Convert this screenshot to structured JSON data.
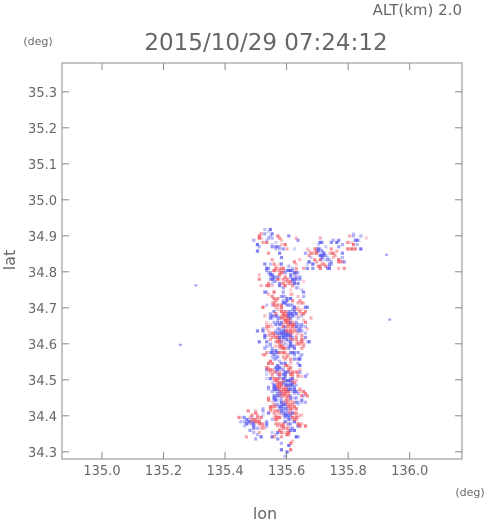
{
  "header": {
    "altitude_label": "ALT(km) 2.0",
    "timestamp": "2015/10/29 07:24:12"
  },
  "chart_data": {
    "type": "heatmap",
    "title": "2015/10/29 07:24:12",
    "xlabel": "lon",
    "ylabel": "lat",
    "xunit": "(deg)",
    "yunit": "(deg)",
    "xlim": [
      134.87,
      136.17
    ],
    "ylim": [
      34.28,
      35.38
    ],
    "xticks": [
      135.0,
      135.2,
      135.4,
      135.6,
      135.8,
      136.0
    ],
    "xtick_labels": [
      "135.0",
      "135.2",
      "135.4",
      "135.6",
      "135.8",
      "136.0"
    ],
    "yticks": [
      34.3,
      34.4,
      34.5,
      34.6,
      34.7,
      34.8,
      34.9,
      35.0,
      35.1,
      35.2,
      35.3
    ],
    "ytick_labels": [
      "34.3",
      "34.4",
      "34.5",
      "34.6",
      "34.7",
      "34.8",
      "34.9",
      "35.0",
      "35.1",
      "35.2",
      "35.3"
    ],
    "grid": false,
    "colors": {
      "positive": "#f05a64",
      "negative": "#5a5af0",
      "frame": "#888888"
    },
    "regions": [
      {
        "lon": 135.59,
        "lat": 34.46,
        "sx": 0.045,
        "sy": 0.11,
        "density": 0.85
      },
      {
        "lon": 135.59,
        "lat": 34.64,
        "sx": 0.055,
        "sy": 0.08,
        "density": 0.85
      },
      {
        "lon": 135.49,
        "lat": 34.38,
        "sx": 0.04,
        "sy": 0.03,
        "density": 0.7
      },
      {
        "lon": 135.58,
        "lat": 34.78,
        "sx": 0.06,
        "sy": 0.04,
        "density": 0.55
      },
      {
        "lon": 135.56,
        "lat": 34.88,
        "sx": 0.06,
        "sy": 0.03,
        "density": 0.4
      },
      {
        "lon": 135.72,
        "lat": 34.84,
        "sx": 0.06,
        "sy": 0.04,
        "density": 0.35
      },
      {
        "lon": 135.82,
        "lat": 34.88,
        "sx": 0.03,
        "sy": 0.02,
        "density": 0.3
      }
    ],
    "isolated_points": [
      {
        "lon": 135.3,
        "lat": 34.765
      },
      {
        "lon": 135.92,
        "lat": 34.85
      },
      {
        "lon": 135.93,
        "lat": 34.67
      },
      {
        "lon": 135.25,
        "lat": 34.6
      }
    ]
  }
}
